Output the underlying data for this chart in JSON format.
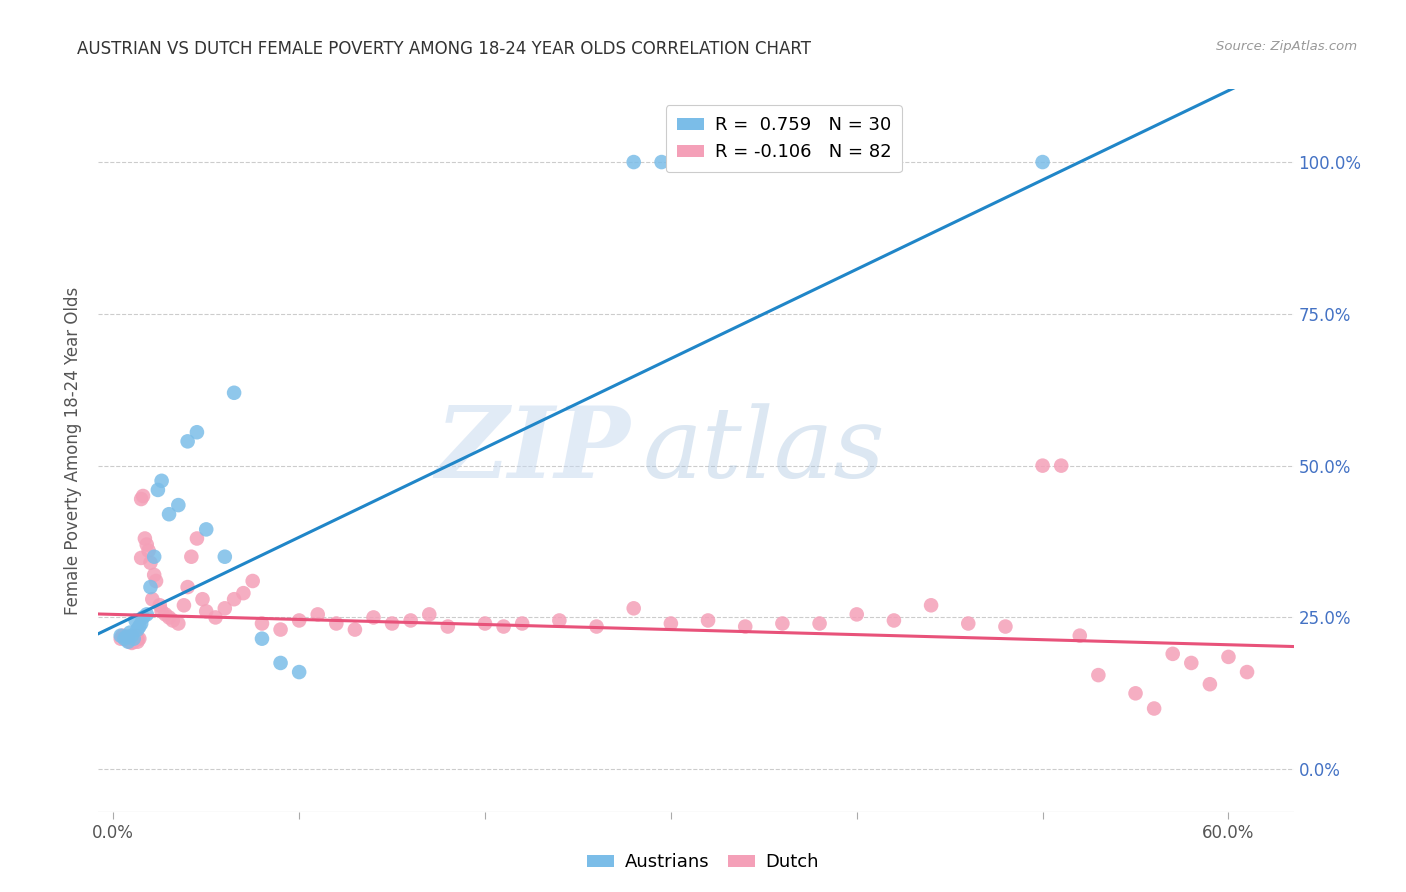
{
  "title": "AUSTRIAN VS DUTCH FEMALE POVERTY AMONG 18-24 YEAR OLDS CORRELATION CHART",
  "source": "Source: ZipAtlas.com",
  "ylabel": "Female Poverty Among 18-24 Year Olds",
  "xtick_vals": [
    0.0,
    0.1,
    0.2,
    0.3,
    0.4,
    0.5,
    0.6
  ],
  "xtick_show": [
    "0.0%",
    "",
    "",
    "",
    "",
    "",
    "60.0%"
  ],
  "ytick_vals": [
    0.0,
    0.25,
    0.5,
    0.75,
    1.0
  ],
  "ytick_labels": [
    "0.0%",
    "25.0%",
    "50.0%",
    "75.0%",
    "100.0%"
  ],
  "xlim": [
    -0.008,
    0.635
  ],
  "ylim": [
    -0.07,
    1.12
  ],
  "austrian_color": "#7bbde8",
  "dutch_color": "#f4a0b8",
  "trendline_austrian_color": "#2086c8",
  "trendline_dutch_color": "#e8527a",
  "legend_austrian_label": "R =  0.759   N = 30",
  "legend_dutch_label": "R = -0.106   N = 82",
  "bottom_legend_austrian": "Austrians",
  "bottom_legend_dutch": "Dutch",
  "austrian_x": [
    0.004,
    0.006,
    0.007,
    0.008,
    0.009,
    0.01,
    0.011,
    0.012,
    0.013,
    0.014,
    0.015,
    0.016,
    0.018,
    0.02,
    0.022,
    0.024,
    0.026,
    0.03,
    0.035,
    0.04,
    0.045,
    0.05,
    0.06,
    0.065,
    0.08,
    0.09,
    0.1,
    0.28,
    0.295,
    0.5
  ],
  "austrian_y": [
    0.22,
    0.215,
    0.218,
    0.21,
    0.225,
    0.22,
    0.215,
    0.245,
    0.23,
    0.235,
    0.24,
    0.25,
    0.255,
    0.3,
    0.35,
    0.46,
    0.475,
    0.42,
    0.435,
    0.54,
    0.555,
    0.395,
    0.35,
    0.62,
    0.215,
    0.175,
    0.16,
    1.0,
    1.0,
    1.0
  ],
  "dutch_x": [
    0.004,
    0.005,
    0.006,
    0.007,
    0.008,
    0.008,
    0.009,
    0.009,
    0.01,
    0.01,
    0.011,
    0.011,
    0.012,
    0.012,
    0.013,
    0.013,
    0.014,
    0.015,
    0.015,
    0.016,
    0.017,
    0.018,
    0.019,
    0.02,
    0.021,
    0.022,
    0.023,
    0.025,
    0.026,
    0.028,
    0.03,
    0.032,
    0.035,
    0.038,
    0.04,
    0.042,
    0.045,
    0.048,
    0.05,
    0.055,
    0.06,
    0.065,
    0.07,
    0.075,
    0.08,
    0.09,
    0.1,
    0.11,
    0.12,
    0.13,
    0.14,
    0.15,
    0.16,
    0.17,
    0.18,
    0.2,
    0.21,
    0.22,
    0.24,
    0.26,
    0.28,
    0.3,
    0.32,
    0.34,
    0.36,
    0.38,
    0.4,
    0.42,
    0.44,
    0.46,
    0.48,
    0.5,
    0.51,
    0.52,
    0.53,
    0.55,
    0.56,
    0.57,
    0.58,
    0.59,
    0.6,
    0.61
  ],
  "dutch_y": [
    0.215,
    0.22,
    0.218,
    0.215,
    0.212,
    0.218,
    0.21,
    0.215,
    0.208,
    0.212,
    0.215,
    0.21,
    0.215,
    0.22,
    0.215,
    0.21,
    0.215,
    0.348,
    0.445,
    0.45,
    0.38,
    0.37,
    0.36,
    0.34,
    0.28,
    0.32,
    0.31,
    0.27,
    0.26,
    0.255,
    0.25,
    0.245,
    0.24,
    0.27,
    0.3,
    0.35,
    0.38,
    0.28,
    0.26,
    0.25,
    0.265,
    0.28,
    0.29,
    0.31,
    0.24,
    0.23,
    0.245,
    0.255,
    0.24,
    0.23,
    0.25,
    0.24,
    0.245,
    0.255,
    0.235,
    0.24,
    0.235,
    0.24,
    0.245,
    0.235,
    0.265,
    0.24,
    0.245,
    0.235,
    0.24,
    0.24,
    0.255,
    0.245,
    0.27,
    0.24,
    0.235,
    0.5,
    0.5,
    0.22,
    0.155,
    0.125,
    0.1,
    0.19,
    0.175,
    0.14,
    0.185,
    0.16
  ]
}
